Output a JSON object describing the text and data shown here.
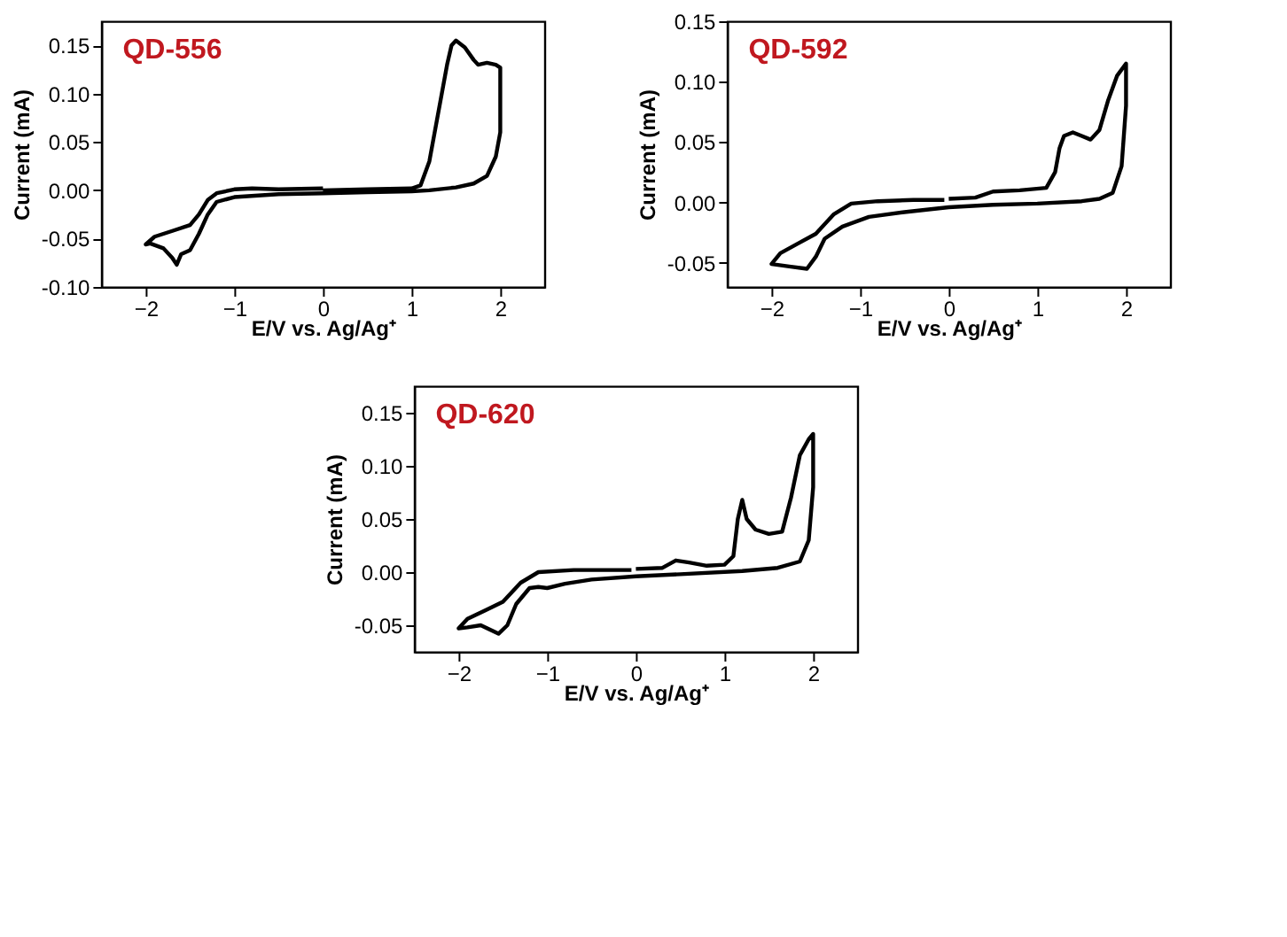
{
  "chart_data": [
    {
      "type": "line",
      "title": "QD-556",
      "xlabel": "E/V vs. Ag/Ag⁺",
      "ylabel": "Current (mA)",
      "xlim": [
        -2.5,
        2.5
      ],
      "xticks": [
        -2,
        -1,
        0,
        1,
        2
      ],
      "ylim": [
        -0.1,
        0.175
      ],
      "yticks": [
        {
          "value": -0.1,
          "label": "-0.10"
        },
        {
          "value": -0.05,
          "label": "-0.05"
        },
        {
          "value": 0,
          "label": "0.00"
        },
        {
          "value": 0.05,
          "label": "0.05"
        },
        {
          "value": 0.1,
          "label": "0.10"
        },
        {
          "value": 0.15,
          "label": "0.15"
        }
      ],
      "grid": false,
      "line_style": "solid",
      "series": [
        {
          "color": "#000000",
          "x": [
            0,
            0.5,
            1.0,
            1.1,
            1.2,
            1.3,
            1.4,
            1.45,
            1.5,
            1.6,
            1.7,
            1.75,
            1.85,
            1.95,
            2.0,
            2.0,
            2.0,
            1.95,
            1.85,
            1.7,
            1.5,
            1.2,
            1.0,
            0.5,
            0,
            -0.5,
            -1.0,
            -1.2,
            -1.3,
            -1.4,
            -1.5,
            -1.6,
            -1.65,
            -1.7,
            -1.8,
            -1.95,
            -2.0,
            -1.9,
            -1.7,
            -1.5,
            -1.4,
            -1.3,
            -1.2,
            -1.0,
            -0.8,
            -0.5,
            0
          ],
          "values": [
            0.0,
            0.001,
            0.002,
            0.005,
            0.03,
            0.08,
            0.13,
            0.15,
            0.155,
            0.148,
            0.135,
            0.13,
            0.132,
            0.13,
            0.127,
            0.1,
            0.06,
            0.035,
            0.015,
            0.007,
            0.003,
            0.0,
            -0.001,
            -0.002,
            -0.003,
            -0.004,
            -0.007,
            -0.012,
            -0.025,
            -0.045,
            -0.062,
            -0.066,
            -0.077,
            -0.07,
            -0.06,
            -0.055,
            -0.056,
            -0.048,
            -0.042,
            -0.036,
            -0.025,
            -0.01,
            -0.003,
            0.001,
            0.002,
            0.001,
            0.002
          ]
        }
      ]
    },
    {
      "type": "line",
      "title": "QD-592",
      "xlabel": "E/V vs. Ag/Ag⁺",
      "ylabel": "Current (mA)",
      "xlim": [
        -2.5,
        2.5
      ],
      "xticks": [
        -2,
        -1,
        0,
        1,
        2
      ],
      "ylim": [
        -0.07,
        0.15
      ],
      "yticks": [
        {
          "value": -0.05,
          "label": "-0.05"
        },
        {
          "value": 0,
          "label": "0.00"
        },
        {
          "value": 0.05,
          "label": "0.05"
        },
        {
          "value": 0.1,
          "label": "0.10"
        },
        {
          "value": 0.15,
          "label": "0.15"
        }
      ],
      "grid": false,
      "line_style": "solid",
      "series": [
        {
          "color": "#000000",
          "x": [
            0,
            0.3,
            0.5,
            0.8,
            1.1,
            1.2,
            1.25,
            1.3,
            1.4,
            1.5,
            1.6,
            1.7,
            1.8,
            1.9,
            2.0,
            2.0,
            1.95,
            1.85,
            1.7,
            1.5,
            1.0,
            0.5,
            0,
            -0.5,
            -0.9,
            -1.2,
            -1.4,
            -1.5,
            -1.6,
            -1.8,
            -2.0,
            -1.9,
            -1.7,
            -1.5,
            -1.3,
            -1.1,
            -0.8,
            -0.4,
            -0.05
          ],
          "values": [
            0.003,
            0.004,
            0.009,
            0.01,
            0.012,
            0.025,
            0.045,
            0.055,
            0.058,
            0.055,
            0.052,
            0.06,
            0.085,
            0.105,
            0.115,
            0.08,
            0.03,
            0.008,
            0.003,
            0.001,
            -0.001,
            -0.002,
            -0.004,
            -0.008,
            -0.012,
            -0.02,
            -0.03,
            -0.045,
            -0.055,
            -0.053,
            -0.051,
            -0.042,
            -0.034,
            -0.026,
            -0.01,
            -0.001,
            0.001,
            0.002,
            0.002
          ]
        }
      ]
    },
    {
      "type": "line",
      "title": "QD-620",
      "xlabel": "E/V vs. Ag/Ag⁺",
      "ylabel": "Current (mA)",
      "xlim": [
        -2.5,
        2.5
      ],
      "xticks": [
        -2,
        -1,
        0,
        1,
        2
      ],
      "ylim": [
        -0.075,
        0.175
      ],
      "yticks": [
        {
          "value": -0.05,
          "label": "-0.05"
        },
        {
          "value": 0,
          "label": "0.00"
        },
        {
          "value": 0.05,
          "label": "0.05"
        },
        {
          "value": 0.1,
          "label": "0.10"
        },
        {
          "value": 0.15,
          "label": "0.15"
        }
      ],
      "grid": false,
      "line_style": "solid",
      "series": [
        {
          "color": "#000000",
          "x": [
            0,
            0.3,
            0.45,
            0.6,
            0.8,
            1.0,
            1.1,
            1.15,
            1.2,
            1.25,
            1.35,
            1.5,
            1.65,
            1.75,
            1.85,
            1.95,
            2.0,
            2.0,
            1.95,
            1.85,
            1.6,
            1.2,
            0.5,
            0,
            -0.5,
            -0.8,
            -1.0,
            -1.1,
            -1.2,
            -1.35,
            -1.45,
            -1.55,
            -1.75,
            -1.9,
            -2.0,
            -1.9,
            -1.7,
            -1.5,
            -1.3,
            -1.1,
            -0.7,
            -0.3,
            -0.05
          ],
          "values": [
            0.003,
            0.004,
            0.011,
            0.009,
            0.006,
            0.007,
            0.015,
            0.05,
            0.068,
            0.05,
            0.04,
            0.036,
            0.038,
            0.07,
            0.11,
            0.125,
            0.13,
            0.08,
            0.03,
            0.01,
            0.004,
            0.001,
            -0.002,
            -0.004,
            -0.007,
            -0.011,
            -0.015,
            -0.014,
            -0.015,
            -0.03,
            -0.05,
            -0.058,
            -0.05,
            -0.052,
            -0.053,
            -0.044,
            -0.036,
            -0.028,
            -0.01,
            0.0,
            0.002,
            0.002,
            0.002
          ]
        }
      ]
    }
  ]
}
